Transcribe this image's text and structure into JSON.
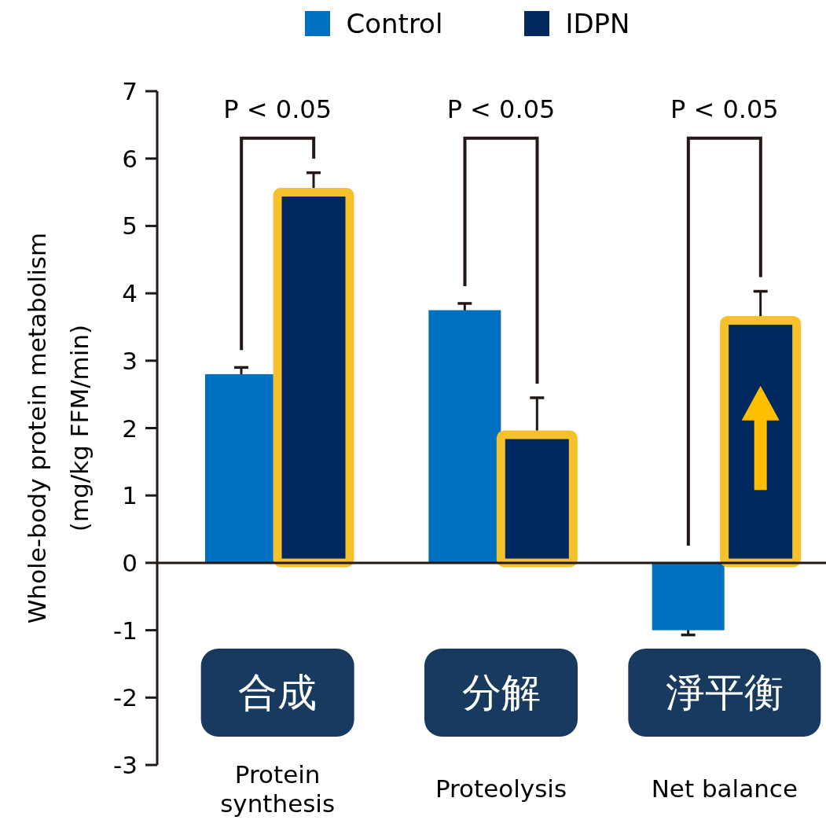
{
  "chart_data": {
    "type": "bar",
    "categories": [
      "合成\nProtein\nsynthesis",
      "分解\nProteolysis",
      "淨平衡\nNet balance"
    ],
    "series": [
      {
        "name": "Control",
        "color": "#0070c0",
        "values": [
          2.8,
          3.75,
          -1.0
        ],
        "errors": [
          0.1,
          0.1,
          0.07
        ]
      },
      {
        "name": "IDPN",
        "color": "#00285f",
        "values": [
          5.5,
          1.9,
          3.6
        ],
        "errors": [
          0.29,
          0.55,
          0.43
        ]
      }
    ],
    "ylabel": "Whole-body protein metabolism\n(mg/kg FFM/min)",
    "ylim": [
      -3,
      7
    ],
    "yticks": [
      -3,
      -2,
      -1,
      0,
      1,
      2,
      3,
      4,
      5,
      6,
      7
    ],
    "legend": "top",
    "annotations": [
      "P < 0.05",
      "P < 0.05",
      "P < 0.05"
    ]
  }
}
